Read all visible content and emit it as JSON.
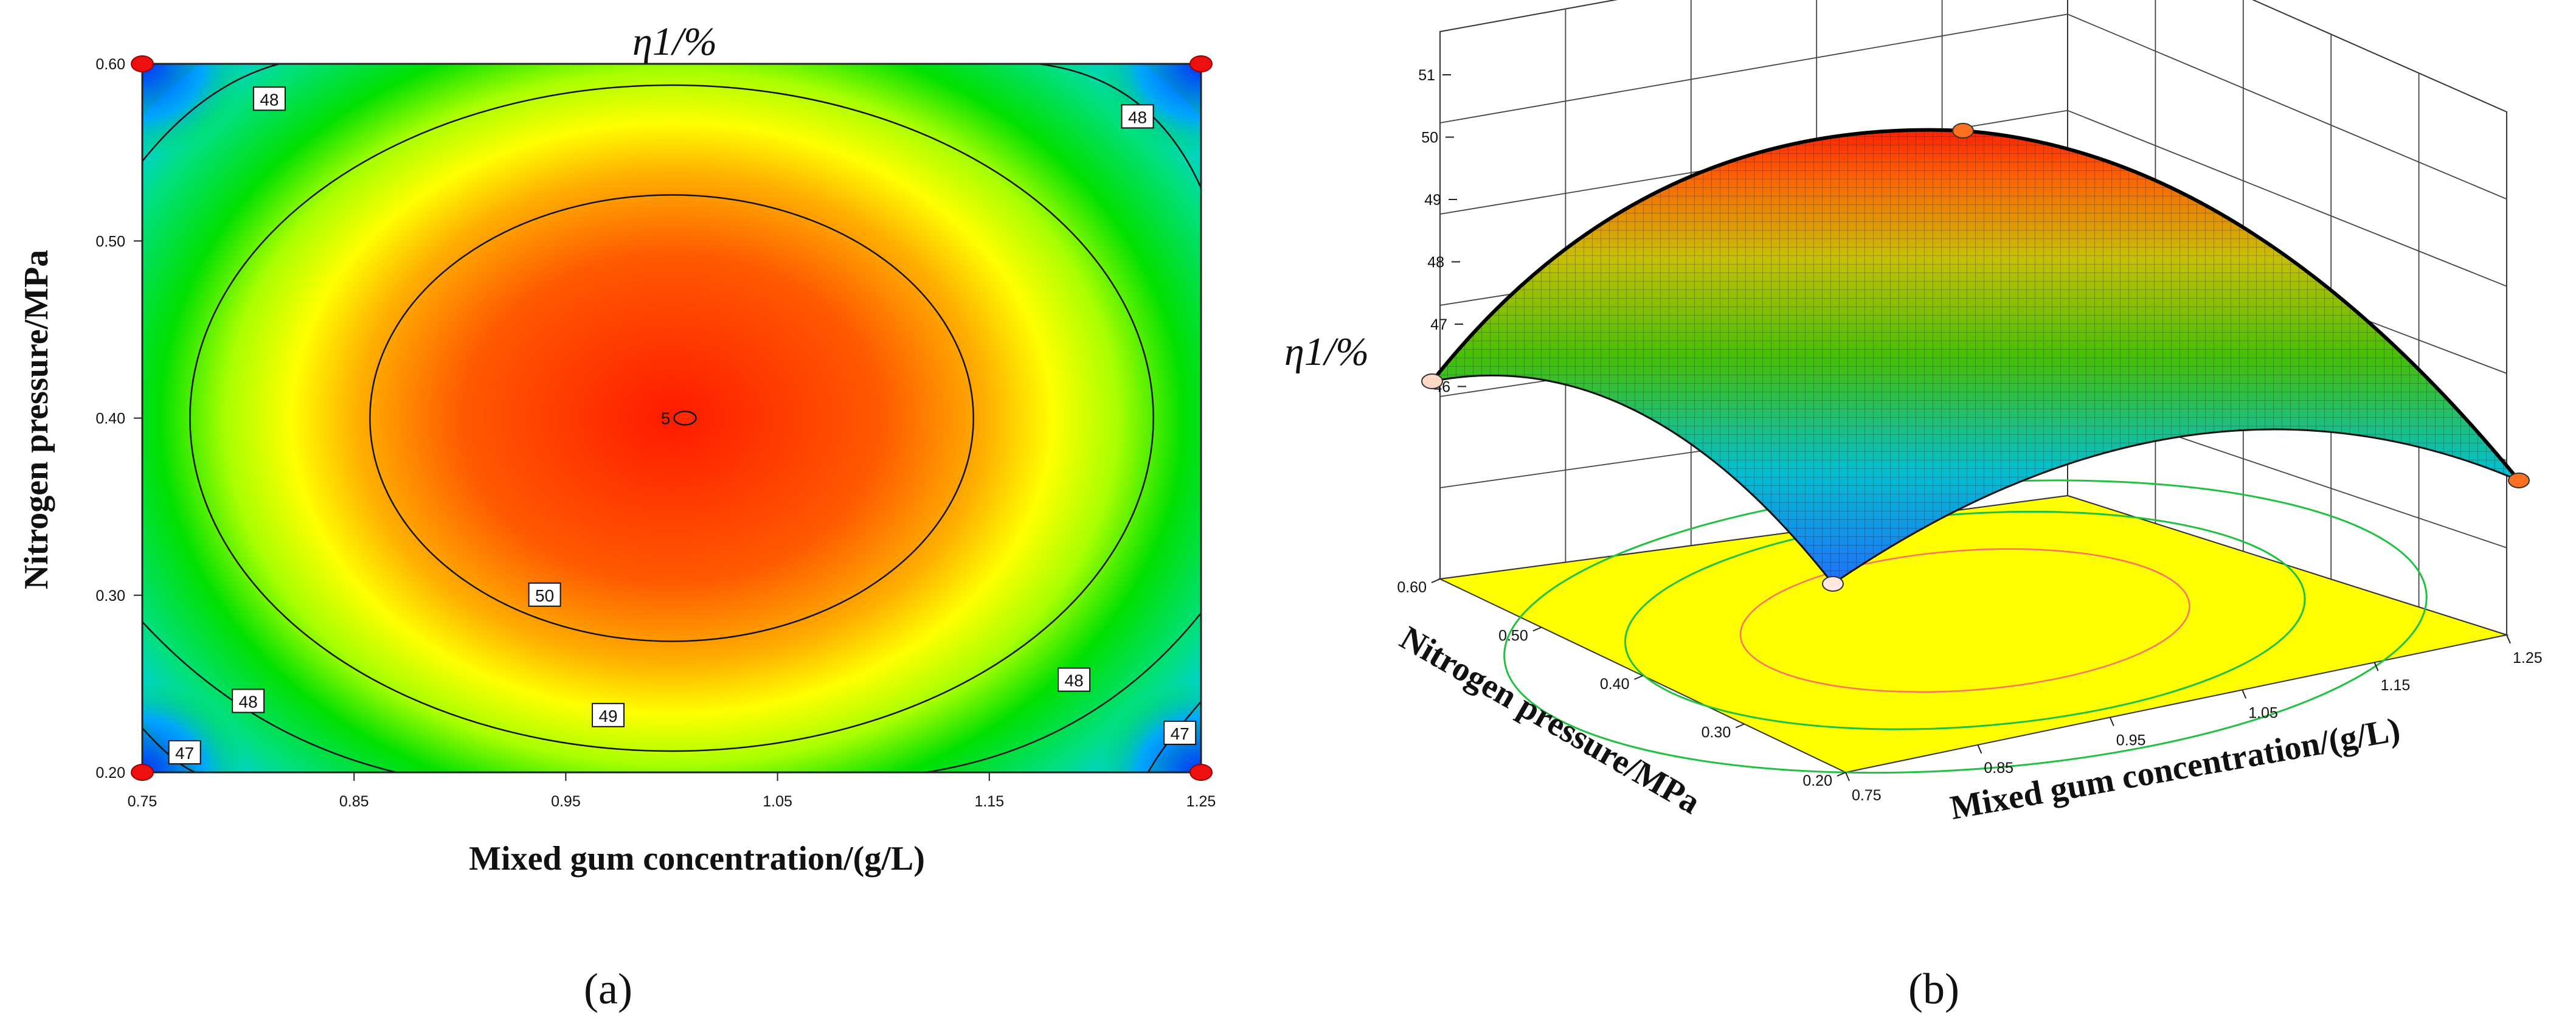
{
  "chart_data": [
    {
      "type": "heatmap",
      "variant": "contour",
      "panel_label": "(a)",
      "title": "η1/%",
      "xlabel": "Mixed gum concentration/(g/L)",
      "ylabel": "Nitrogen pressure/MPa",
      "xlim": [
        0.75,
        1.25
      ],
      "ylim": [
        0.2,
        0.6
      ],
      "x_ticks": [
        "0.75",
        "0.85",
        "0.95",
        "1.05",
        "1.15",
        "1.25"
      ],
      "y_ticks": [
        "0.20",
        "0.30",
        "0.40",
        "0.50",
        "0.60"
      ],
      "optimum": {
        "x": 1.0,
        "y": 0.4,
        "label": "5"
      },
      "contour_levels": [
        47,
        48,
        49,
        50
      ],
      "contour_labels": [
        {
          "text": "48",
          "x": 0.81,
          "y": 0.58
        },
        {
          "text": "48",
          "x": 1.22,
          "y": 0.57
        },
        {
          "text": "50",
          "x": 0.94,
          "y": 0.3
        },
        {
          "text": "49",
          "x": 0.97,
          "y": 0.232
        },
        {
          "text": "48",
          "x": 0.8,
          "y": 0.24
        },
        {
          "text": "48",
          "x": 1.19,
          "y": 0.252
        },
        {
          "text": "47",
          "x": 0.77,
          "y": 0.211
        },
        {
          "text": "47",
          "x": 1.24,
          "y": 0.222
        }
      ],
      "design_points": [
        {
          "x": 0.75,
          "y": 0.6
        },
        {
          "x": 1.25,
          "y": 0.6
        },
        {
          "x": 0.75,
          "y": 0.2
        },
        {
          "x": 1.25,
          "y": 0.2
        }
      ],
      "colors": {
        "low": "#0040ff",
        "mid": "#00e000",
        "high": "#ff1a00"
      }
    },
    {
      "type": "surface",
      "panel_label": "(b)",
      "zlabel": "η1/%",
      "xlabel": "Mixed gum concentration/(g/L)",
      "ylabel": "Nitrogen pressure/MPa",
      "xlim": [
        0.75,
        1.25
      ],
      "ylim": [
        0.2,
        0.6
      ],
      "zlim": [
        45,
        51
      ],
      "x_ticks": [
        "0.75",
        "0.85",
        "0.95",
        "1.05",
        "1.15",
        "1.25"
      ],
      "y_ticks": [
        "0.20",
        "0.30",
        "0.40",
        "0.50",
        "0.60"
      ],
      "z_ticks": [
        "46",
        "47",
        "48",
        "49",
        "50",
        "51"
      ],
      "peak": {
        "x": 1.0,
        "y": 0.4,
        "z": 50.2
      },
      "corner_points": [
        {
          "x": 0.75,
          "y": 0.6,
          "z": 47.0
        },
        {
          "x": 1.25,
          "y": 0.6,
          "z": 50.1
        },
        {
          "x": 1.25,
          "y": 0.2,
          "z": 45.9
        },
        {
          "x": 0.75,
          "y": 0.2,
          "z": 45.2
        }
      ],
      "colors": {
        "low": "#1f6fff",
        "mid": "#44c000",
        "high": "#ff2000",
        "floor": "#ffff00"
      }
    }
  ]
}
